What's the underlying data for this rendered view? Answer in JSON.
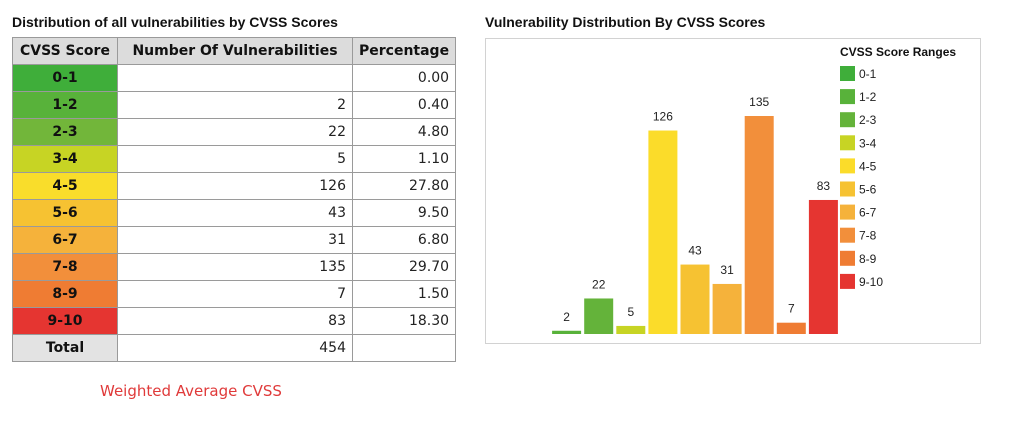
{
  "left_title": "Distribution of all vulnerabilities by CVSS Scores",
  "table": {
    "headers": [
      "CVSS Score",
      "Number Of Vulnerabilities",
      "Percentage"
    ],
    "rows": [
      {
        "range": "0-1",
        "count": "",
        "percent": "0.00",
        "color": "#3fae3a"
      },
      {
        "range": "1-2",
        "count": "2",
        "percent": "0.40",
        "color": "#58b23a"
      },
      {
        "range": "2-3",
        "count": "22",
        "percent": "4.80",
        "color": "#72b63a"
      },
      {
        "range": "3-4",
        "count": "5",
        "percent": "1.10",
        "color": "#c7d424"
      },
      {
        "range": "4-5",
        "count": "126",
        "percent": "27.80",
        "color": "#f9dd2b"
      },
      {
        "range": "5-6",
        "count": "43",
        "percent": "9.50",
        "color": "#f6c232"
      },
      {
        "range": "6-7",
        "count": "31",
        "percent": "6.80",
        "color": "#f5b23b"
      },
      {
        "range": "7-8",
        "count": "135",
        "percent": "29.70",
        "color": "#f28f3b"
      },
      {
        "range": "8-9",
        "count": "7",
        "percent": "1.50",
        "color": "#ef7c33"
      },
      {
        "range": "9-10",
        "count": "83",
        "percent": "18.30",
        "color": "#e53531"
      }
    ],
    "total": {
      "label": "Total",
      "count": "454",
      "percent": ""
    }
  },
  "weighted_label": "Weighted Average CVSS",
  "chart_data": {
    "type": "bar",
    "title": "Vulnerability Distribution By CVSS Scores",
    "legend_title": "CVSS Score Ranges",
    "legend_position": "right",
    "categories": [
      "0-1",
      "1-2",
      "2-3",
      "3-4",
      "4-5",
      "5-6",
      "6-7",
      "7-8",
      "8-9",
      "9-10"
    ],
    "values": [
      0,
      2,
      22,
      5,
      126,
      43,
      31,
      135,
      7,
      83
    ],
    "data_labels": [
      "",
      "2",
      "22",
      "5",
      "126",
      "43",
      "31",
      "135",
      "7",
      "83"
    ],
    "colors": [
      "#3fae3a",
      "#58b23a",
      "#64b33a",
      "#c7d424",
      "#fbdc2a",
      "#f6c232",
      "#f5b23b",
      "#f28f3b",
      "#ef7c33",
      "#e53531"
    ],
    "grid": false
  }
}
